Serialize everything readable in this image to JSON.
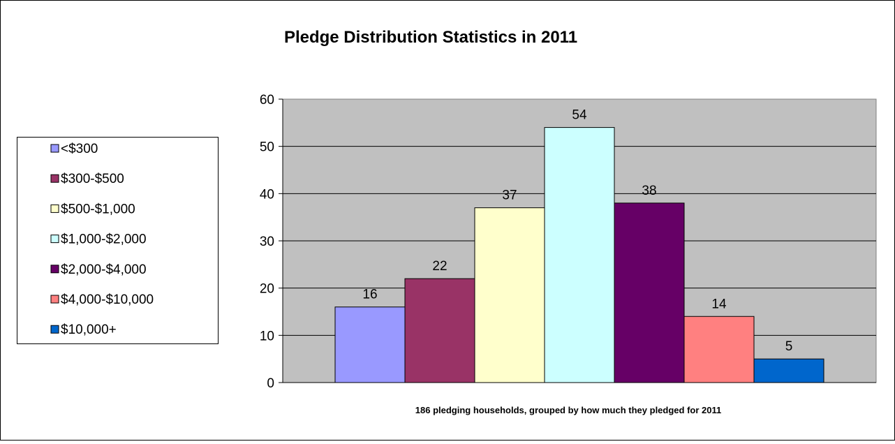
{
  "chart_data": {
    "type": "bar",
    "title": "Pledge Distribution Statistics in 2011",
    "xlabel": "186 pledging households, grouped by how much they pledged for 2011",
    "ylabel": "",
    "ylim": [
      0,
      60
    ],
    "yticks": [
      0,
      10,
      20,
      30,
      40,
      50,
      60
    ],
    "grid": true,
    "legend_position": "left",
    "plot_background": "#c0c0c0",
    "series": [
      {
        "name": "<$300",
        "value": 16,
        "color": "#9999ff"
      },
      {
        "name": "$300-$500",
        "value": 22,
        "color": "#993366"
      },
      {
        "name": "$500-$1,000",
        "value": 37,
        "color": "#ffffcc"
      },
      {
        "name": "$1,000-$2,000",
        "value": 54,
        "color": "#ccffff"
      },
      {
        "name": "$2,000-$4,000",
        "value": 38,
        "color": "#660066"
      },
      {
        "name": "$4,000-$10,000",
        "value": 14,
        "color": "#ff8080"
      },
      {
        "name": "$10,000+",
        "value": 5,
        "color": "#0066cc"
      }
    ]
  }
}
